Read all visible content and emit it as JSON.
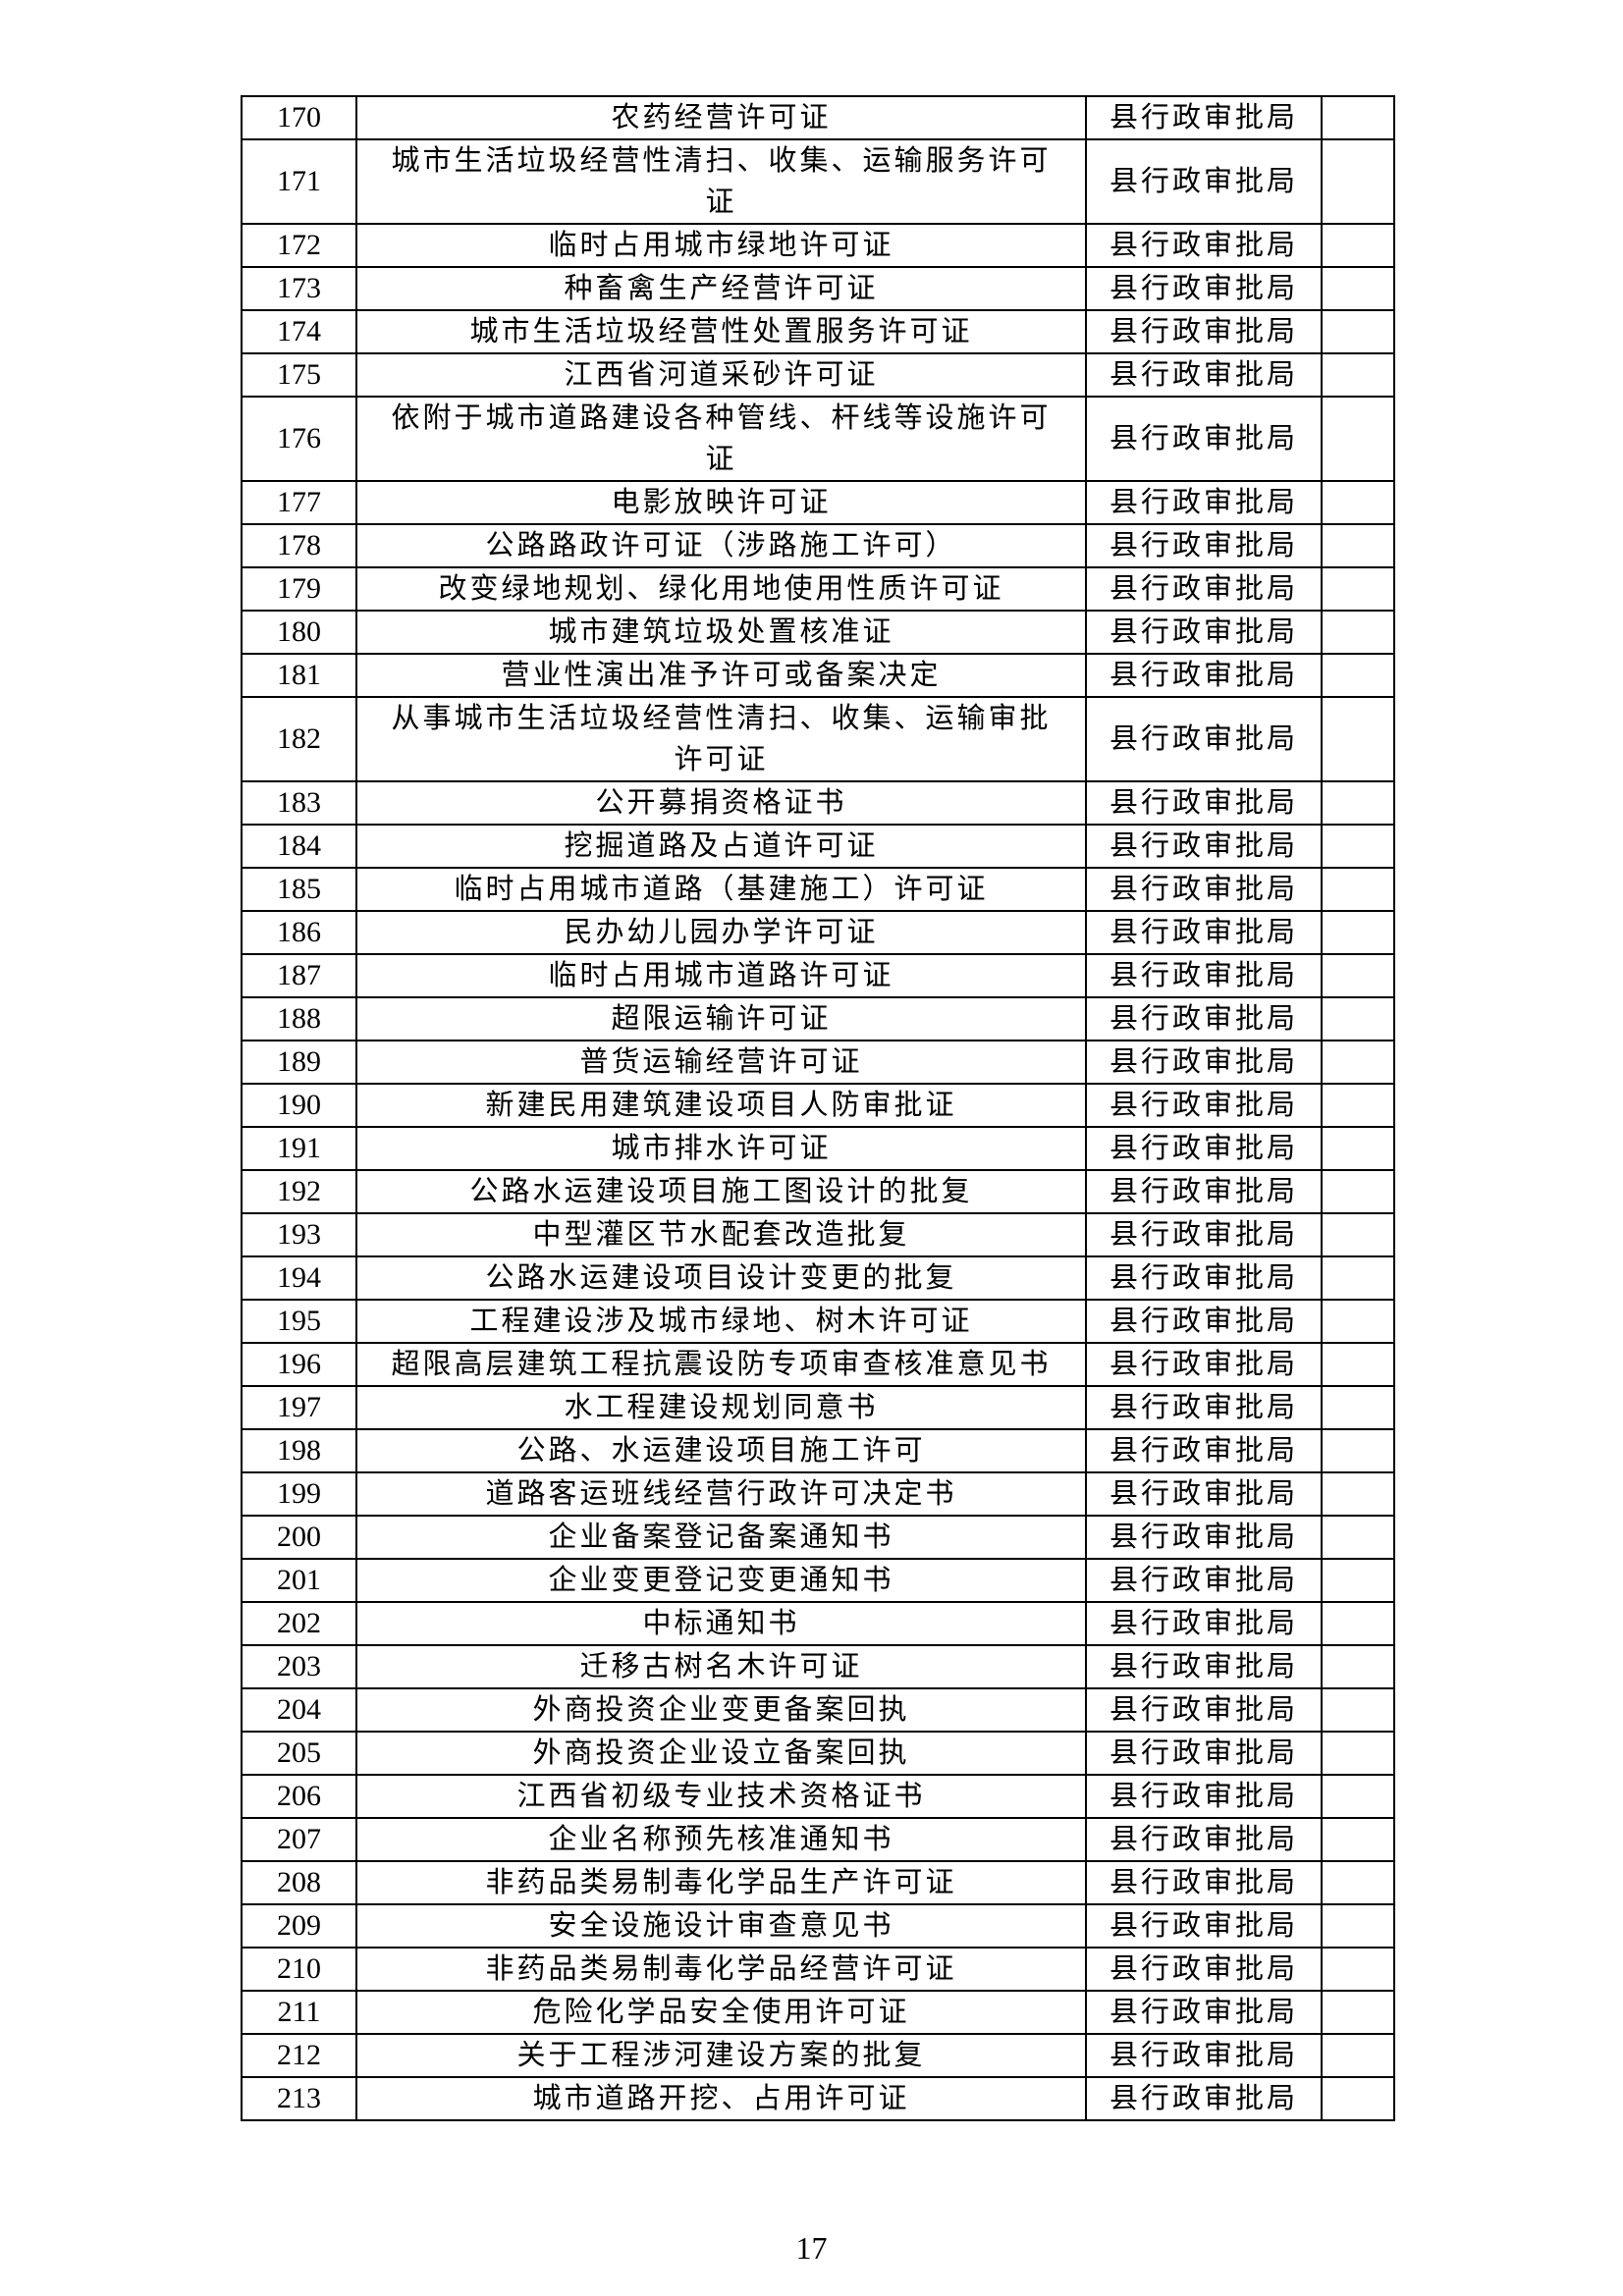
{
  "rows": [
    {
      "no": "170",
      "name": "农药经营许可证",
      "dept": "县行政审批局"
    },
    {
      "no": "171",
      "name": "城市生活垃圾经营性清扫、收集、运输服务许可证",
      "dept": "县行政审批局"
    },
    {
      "no": "172",
      "name": "临时占用城市绿地许可证",
      "dept": "县行政审批局"
    },
    {
      "no": "173",
      "name": "种畜禽生产经营许可证",
      "dept": "县行政审批局"
    },
    {
      "no": "174",
      "name": "城市生活垃圾经营性处置服务许可证",
      "dept": "县行政审批局"
    },
    {
      "no": "175",
      "name": "江西省河道采砂许可证",
      "dept": "县行政审批局"
    },
    {
      "no": "176",
      "name": "依附于城市道路建设各种管线、杆线等设施许可证",
      "dept": "县行政审批局"
    },
    {
      "no": "177",
      "name": "电影放映许可证",
      "dept": "县行政审批局"
    },
    {
      "no": "178",
      "name": "公路路政许可证（涉路施工许可）",
      "dept": "县行政审批局"
    },
    {
      "no": "179",
      "name": "改变绿地规划、绿化用地使用性质许可证",
      "dept": "县行政审批局"
    },
    {
      "no": "180",
      "name": "城市建筑垃圾处置核准证",
      "dept": "县行政审批局"
    },
    {
      "no": "181",
      "name": "营业性演出准予许可或备案决定",
      "dept": "县行政审批局"
    },
    {
      "no": "182",
      "name": "从事城市生活垃圾经营性清扫、收集、运输审批许可证",
      "dept": "县行政审批局"
    },
    {
      "no": "183",
      "name": "公开募捐资格证书",
      "dept": "县行政审批局"
    },
    {
      "no": "184",
      "name": "挖掘道路及占道许可证",
      "dept": "县行政审批局"
    },
    {
      "no": "185",
      "name": "临时占用城市道路（基建施工）许可证",
      "dept": "县行政审批局"
    },
    {
      "no": "186",
      "name": "民办幼儿园办学许可证",
      "dept": "县行政审批局"
    },
    {
      "no": "187",
      "name": "临时占用城市道路许可证",
      "dept": "县行政审批局"
    },
    {
      "no": "188",
      "name": "超限运输许可证",
      "dept": "县行政审批局"
    },
    {
      "no": "189",
      "name": "普货运输经营许可证",
      "dept": "县行政审批局"
    },
    {
      "no": "190",
      "name": "新建民用建筑建设项目人防审批证",
      "dept": "县行政审批局"
    },
    {
      "no": "191",
      "name": "城市排水许可证",
      "dept": "县行政审批局"
    },
    {
      "no": "192",
      "name": "公路水运建设项目施工图设计的批复",
      "dept": "县行政审批局"
    },
    {
      "no": "193",
      "name": "中型灌区节水配套改造批复",
      "dept": "县行政审批局"
    },
    {
      "no": "194",
      "name": "公路水运建设项目设计变更的批复",
      "dept": "县行政审批局"
    },
    {
      "no": "195",
      "name": "工程建设涉及城市绿地、树木许可证",
      "dept": "县行政审批局"
    },
    {
      "no": "196",
      "name": "超限高层建筑工程抗震设防专项审查核准意见书",
      "dept": "县行政审批局"
    },
    {
      "no": "197",
      "name": "水工程建设规划同意书",
      "dept": "县行政审批局"
    },
    {
      "no": "198",
      "name": "公路、水运建设项目施工许可",
      "dept": "县行政审批局"
    },
    {
      "no": "199",
      "name": "道路客运班线经营行政许可决定书",
      "dept": "县行政审批局"
    },
    {
      "no": "200",
      "name": "企业备案登记备案通知书",
      "dept": "县行政审批局"
    },
    {
      "no": "201",
      "name": "企业变更登记变更通知书",
      "dept": "县行政审批局"
    },
    {
      "no": "202",
      "name": "中标通知书",
      "dept": "县行政审批局"
    },
    {
      "no": "203",
      "name": "迁移古树名木许可证",
      "dept": "县行政审批局"
    },
    {
      "no": "204",
      "name": "外商投资企业变更备案回执",
      "dept": "县行政审批局"
    },
    {
      "no": "205",
      "name": "外商投资企业设立备案回执",
      "dept": "县行政审批局"
    },
    {
      "no": "206",
      "name": "江西省初级专业技术资格证书",
      "dept": "县行政审批局"
    },
    {
      "no": "207",
      "name": "企业名称预先核准通知书",
      "dept": "县行政审批局"
    },
    {
      "no": "208",
      "name": "非药品类易制毒化学品生产许可证",
      "dept": "县行政审批局"
    },
    {
      "no": "209",
      "name": "安全设施设计审查意见书",
      "dept": "县行政审批局"
    },
    {
      "no": "210",
      "name": "非药品类易制毒化学品经营许可证",
      "dept": "县行政审批局"
    },
    {
      "no": "211",
      "name": "危险化学品安全使用许可证",
      "dept": "县行政审批局"
    },
    {
      "no": "212",
      "name": "关于工程涉河建设方案的批复",
      "dept": "县行政审批局"
    },
    {
      "no": "213",
      "name": "城市道路开挖、占用许可证",
      "dept": "县行政审批局"
    }
  ],
  "page_number": "17"
}
